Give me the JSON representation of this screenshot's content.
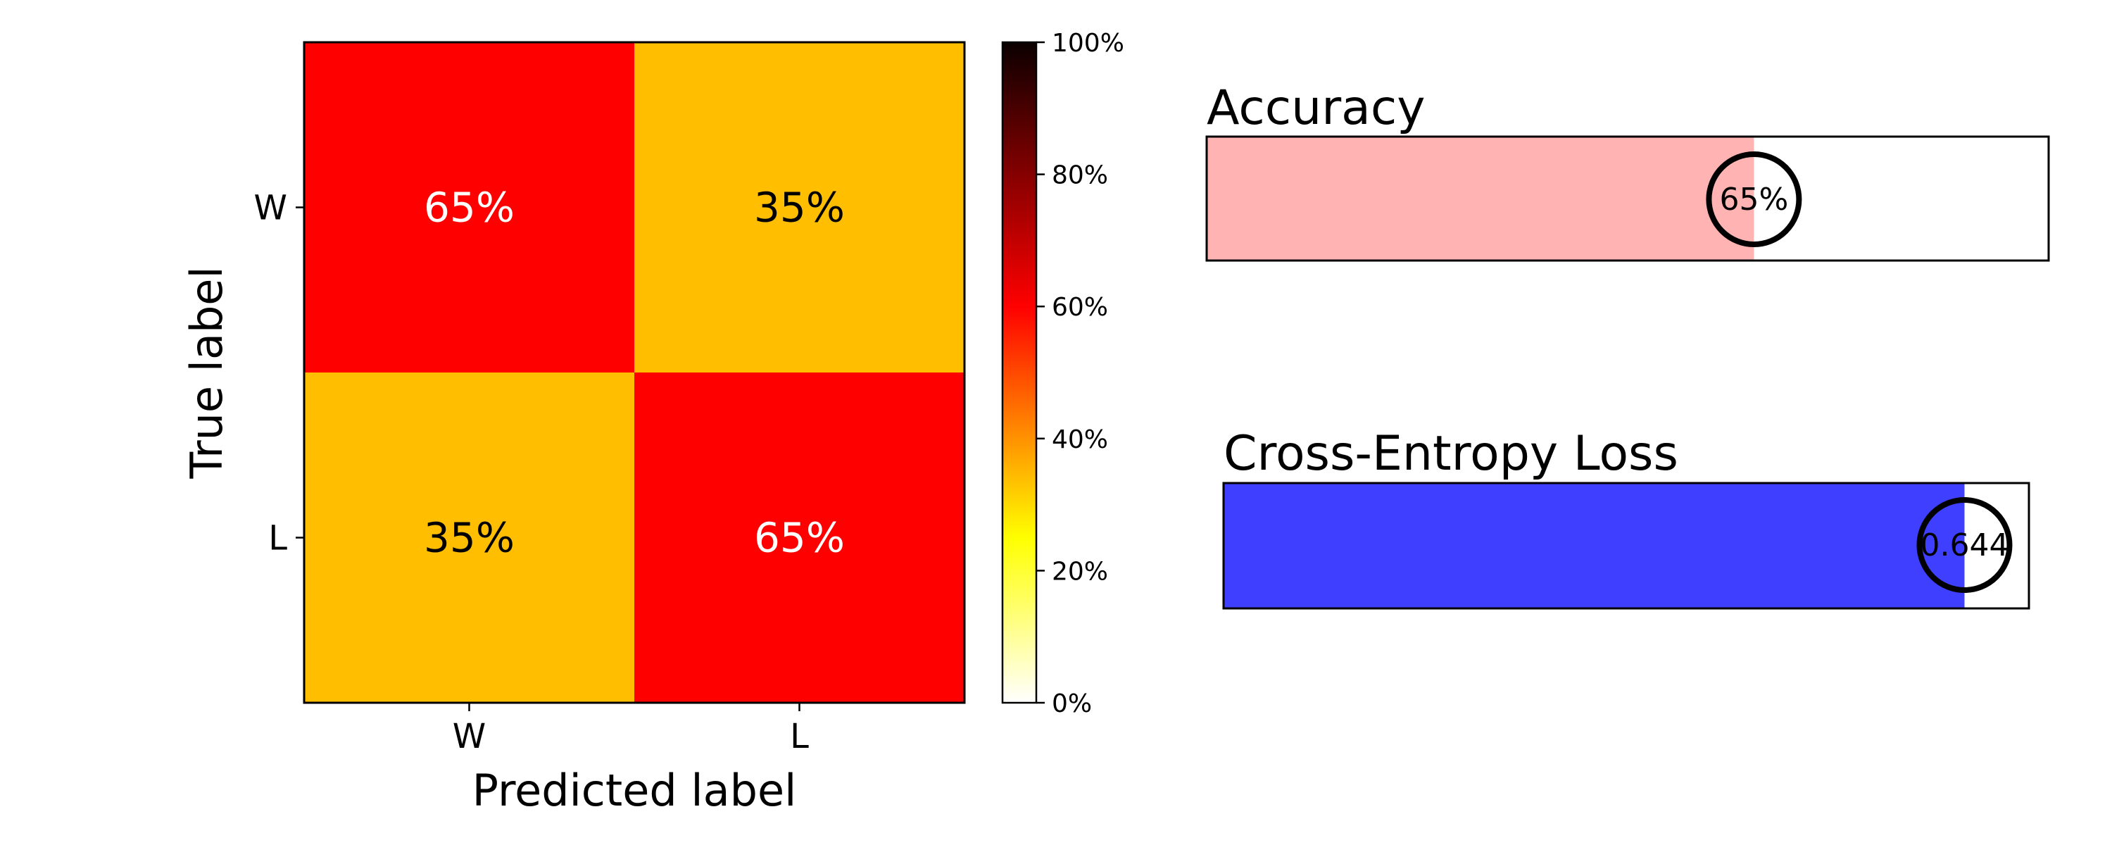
{
  "chart_data": [
    {
      "type": "heatmap",
      "x_categories": [
        "W",
        "L"
      ],
      "y_categories": [
        "W",
        "L"
      ],
      "values": [
        [
          65,
          35
        ],
        [
          35,
          65
        ]
      ],
      "cell_labels": [
        [
          "65%",
          "35%"
        ],
        [
          "35%",
          "65%"
        ]
      ],
      "xlabel": "Predicted label",
      "ylabel": "True label",
      "colorbar": {
        "range": [
          0,
          100
        ],
        "ticks": [
          0,
          20,
          40,
          60,
          80,
          100
        ],
        "tick_labels": [
          "0%",
          "20%",
          "40%",
          "60%",
          "80%",
          "100%"
        ],
        "colormap": "hot_r"
      }
    },
    {
      "type": "bar",
      "orientation": "horizontal",
      "title": "Accuracy",
      "value": 0.65,
      "range": [
        0,
        1
      ],
      "label": "65%",
      "color": "#ffb3b3"
    },
    {
      "type": "bar",
      "orientation": "horizontal",
      "title": "Cross-Entropy Loss",
      "value": 0.644,
      "range": [
        0,
        0.7
      ],
      "label": "0.644",
      "color": "#3f3fff"
    }
  ]
}
